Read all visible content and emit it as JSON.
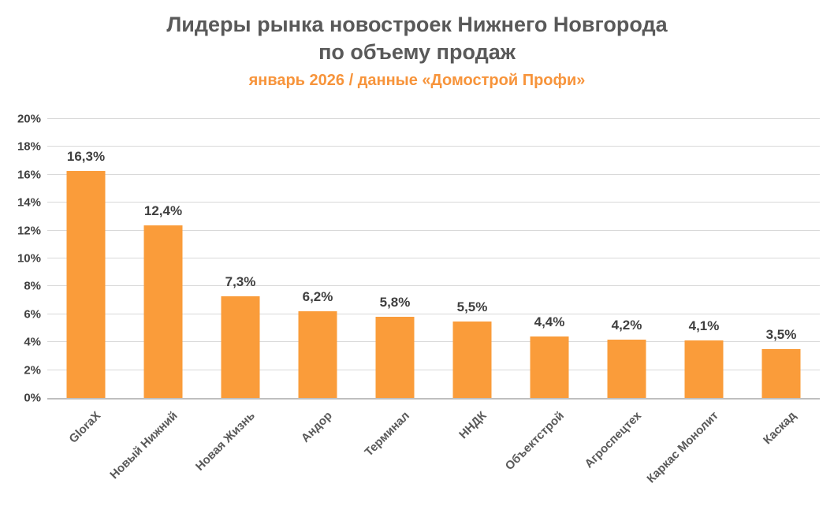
{
  "title": {
    "line1": "Лидеры рынка новостроек Нижнего Новгорода",
    "line2": "по объему продаж"
  },
  "subtitle": "январь 2026 / данные «Домострой Профи»",
  "chart_data": {
    "type": "bar",
    "title": "Лидеры рынка новостроек Нижнего Новгорода по объему продаж",
    "subtitle": "январь 2026 / данные «Домострой Профи»",
    "categories": [
      "GloraX",
      "Новый Нижний",
      "Новая Жизнь",
      "Андор",
      "Терминал",
      "ННДК",
      "Объектстрой",
      "Агроспецтех",
      "Каркас Монолит",
      "Каскад"
    ],
    "values": [
      16.3,
      12.4,
      7.3,
      6.2,
      5.8,
      5.5,
      4.4,
      4.2,
      4.1,
      3.5
    ],
    "value_labels": [
      "16,3%",
      "12,4%",
      "7,3%",
      "6,2%",
      "5,8%",
      "5,5%",
      "4,4%",
      "4,2%",
      "4,1%",
      "3,5%"
    ],
    "xlabel": "",
    "ylabel": "",
    "ylim": [
      0,
      20
    ],
    "y_ticks": [
      "0%",
      "2%",
      "4%",
      "6%",
      "8%",
      "10%",
      "12%",
      "14%",
      "16%",
      "18%",
      "20%"
    ],
    "grid": true,
    "legend": false,
    "x_label_rotation_deg": 45,
    "colors": {
      "bar": "#FA9C3A",
      "title": "#595959",
      "subtitle": "#F7943B",
      "grid": "#D9D9D9",
      "axis_line": "#BFBFBF",
      "value_label": "#3F3F3F",
      "tick_label": "#404040"
    }
  }
}
